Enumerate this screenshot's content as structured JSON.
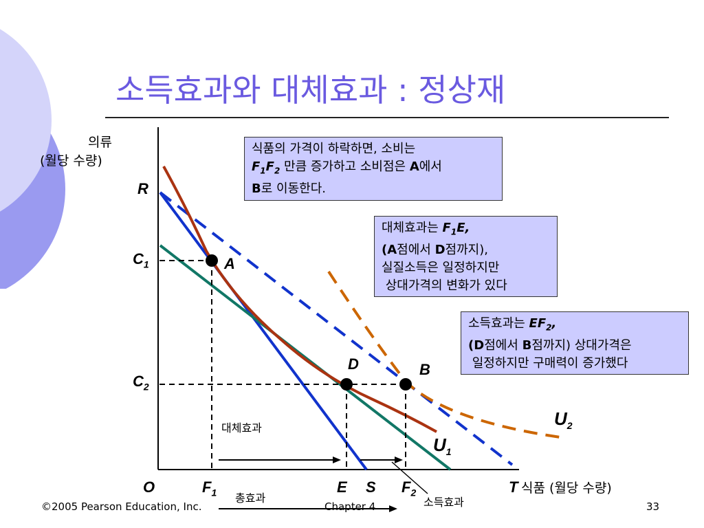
{
  "slide": {
    "title": "소득효과와 대체효과 : 정상재",
    "footer_left": "©2005 Pearson Education, Inc.",
    "footer_center": "Chapter 4",
    "page_number": "33"
  },
  "axes": {
    "y_label_line1": "의류",
    "y_label_line2": "(월당 수량)",
    "x_label": "식품 (월당 수량)",
    "origin": "O",
    "y_intercept": "R",
    "x_intercept_original": "S",
    "x_intercept_new": "T",
    "c1": "C",
    "c1_sub": "1",
    "c2": "C",
    "c2_sub": "2",
    "f1": "F",
    "f1_sub": "1",
    "f2": "F",
    "f2_sub": "2",
    "e": "E"
  },
  "points": {
    "a": "A",
    "b": "B",
    "d": "D"
  },
  "curves": {
    "u1": "U",
    "u1_sub": "1",
    "u2": "U",
    "u2_sub": "2"
  },
  "effects": {
    "substitution": "대체효과",
    "total": "총효과",
    "income": "소득효과"
  },
  "boxes": {
    "box1": {
      "line1": "식품의 가격이 하락하면, 소비는",
      "line2_f1": "F",
      "line2_f1_sub": "1",
      "line2_f2": "F",
      "line2_f2_sub": "2",
      "line2_rest": " 만큼 증가하고 소비점은 ",
      "line2_a": "A",
      "line2_tail": "에서",
      "line3_b": "B",
      "line3_rest": "로 이동한다."
    },
    "box2": {
      "line1_text": "대체효과는  ",
      "line1_f": "F",
      "line1_f_sub": "1",
      "line1_e": "E,",
      "line2_open": "(",
      "line2_a": "A",
      "line2_mid": "점에서 ",
      "line2_d": "D",
      "line2_close": "점까지),",
      "line3": "실질소득은 일정하지만",
      "line4": " 상대가격의 변화가 있다"
    },
    "box3": {
      "line1_text": "소득효과는 ",
      "line1_ef": "EF",
      "line1_ef_sub": "2",
      "line1_comma": ",",
      "line2_open": "(",
      "line2_d": "D",
      "line2_mid": "점에서 ",
      "line2_b": "B",
      "line2_close": "점까지) 상대가격은",
      "line3": " 일정하지만 구매력이 증가했다"
    }
  },
  "colors": {
    "title": "#6a5ae0",
    "budget_line": "#1133cc",
    "budget_line_rotated": "#117766",
    "u1_curve": "#aa3311",
    "u2_curve": "#cc6600",
    "box_fill": "#ccccff",
    "deco_circle_light": "#d4d4fa",
    "deco_circle_dark": "#9a9af0"
  }
}
